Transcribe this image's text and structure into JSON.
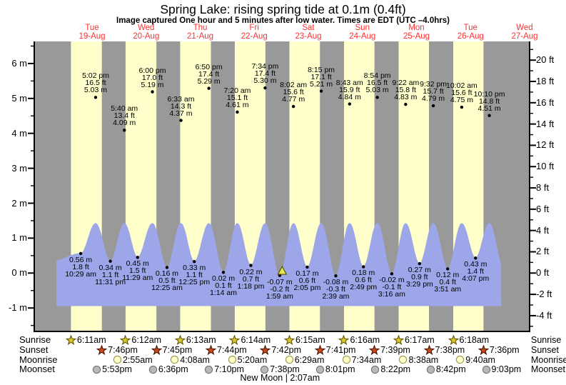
{
  "title": "Spring Lake: rising  spring tide at 0.1m (0.4ft)",
  "subtitle": "Image captured One hour and 5 minutes after low water. Times are EDT (UTC –4.0hrs)",
  "days": [
    {
      "name": "Tue",
      "date": "19-Aug"
    },
    {
      "name": "Wed",
      "date": "20-Aug"
    },
    {
      "name": "Thu",
      "date": "21-Aug"
    },
    {
      "name": "Fri",
      "date": "22-Aug"
    },
    {
      "name": "Sat",
      "date": "23-Aug"
    },
    {
      "name": "Sun",
      "date": "24-Aug"
    },
    {
      "name": "Mon",
      "date": "25-Aug"
    },
    {
      "name": "Tue",
      "date": "26-Aug"
    },
    {
      "name": "Wed",
      "date": "27-Aug"
    }
  ],
  "axis": {
    "left_ticks": [
      {
        "label": "6 m",
        "m": 6
      },
      {
        "label": "5 m",
        "m": 5
      },
      {
        "label": "4 m",
        "m": 4
      },
      {
        "label": "3 m",
        "m": 3
      },
      {
        "label": "2 m",
        "m": 2
      },
      {
        "label": "1 m",
        "m": 1
      },
      {
        "label": "0 m",
        "m": 0
      },
      {
        "label": "-1 m",
        "m": -1
      }
    ],
    "right_ticks": [
      {
        "label": "20 ft",
        "ft": 20
      },
      {
        "label": "18 ft",
        "ft": 18
      },
      {
        "label": "16 ft",
        "ft": 16
      },
      {
        "label": "14 ft",
        "ft": 14
      },
      {
        "label": "12 ft",
        "ft": 12
      },
      {
        "label": "10 ft",
        "ft": 10
      },
      {
        "label": "8 ft",
        "ft": 8
      },
      {
        "label": "6 ft",
        "ft": 6
      },
      {
        "label": "4 ft",
        "ft": 4
      },
      {
        "label": "2 ft",
        "ft": 2
      },
      {
        "label": "0 ft",
        "ft": 0
      },
      {
        "label": "-2 ft",
        "ft": -2
      },
      {
        "label": "-4 ft",
        "ft": -4
      }
    ]
  },
  "chart_data": {
    "type": "area",
    "description": "Semidiurnal tide curve, alternating day (yellow) / night (grey) bands",
    "y_axis_left": "meters",
    "y_axis_right": "feet",
    "high_tides": [
      {
        "day": 0,
        "time": "5:02 pm",
        "ft": "16.5 ft",
        "m": "5.03 m"
      },
      {
        "day": 1,
        "time": "5:40 am",
        "ft": "13.4 ft",
        "m": "4.09 m"
      },
      {
        "day": 1,
        "time": "6:00 pm",
        "ft": "17.0 ft",
        "m": "5.19 m"
      },
      {
        "day": 2,
        "time": "6:33 am",
        "ft": "14.3 ft",
        "m": "4.37 m"
      },
      {
        "day": 2,
        "time": "6:50 pm",
        "ft": "17.4 ft",
        "m": "5.29 m"
      },
      {
        "day": 3,
        "time": "7:20 am",
        "ft": "15.1 ft",
        "m": "4.61 m"
      },
      {
        "day": 3,
        "time": "7:34 pm",
        "ft": "17.4 ft",
        "m": "5.30 m"
      },
      {
        "day": 4,
        "time": "8:02 am",
        "ft": "15.6 ft",
        "m": "4.77 m"
      },
      {
        "day": 4,
        "time": "8:15 pm",
        "ft": "17.1 ft",
        "m": "5.21 m"
      },
      {
        "day": 5,
        "time": "8:43 am",
        "ft": "15.9 ft",
        "m": "4.84 m"
      },
      {
        "day": 5,
        "time": "8:54 pm",
        "ft": "16.5 ft",
        "m": "5.03 m"
      },
      {
        "day": 6,
        "time": "9:22 am",
        "ft": "15.8 ft",
        "m": "4.83 m"
      },
      {
        "day": 6,
        "time": "9:32 pm",
        "ft": "15.7 ft",
        "m": "4.79 m"
      },
      {
        "day": 7,
        "time": "10:02 am",
        "ft": "15.6 ft",
        "m": "4.75 m"
      },
      {
        "day": 7,
        "time": "10:10 pm",
        "ft": "14.8 ft",
        "m": "4.51 m"
      }
    ],
    "low_tides": [
      {
        "day": 0,
        "time": "10:29 am",
        "ft": "1.8 ft",
        "m": "0.56 m"
      },
      {
        "day": 0,
        "time": "11:31 pm",
        "ft": "1.1 ft",
        "m": "0.34 m"
      },
      {
        "day": 1,
        "time": "11:29 am",
        "ft": "1.5 ft",
        "m": "0.45 m"
      },
      {
        "day": 2,
        "time": "12:25 am",
        "ft": "0.5 ft",
        "m": "0.16 m"
      },
      {
        "day": 2,
        "time": "12:25 pm",
        "ft": "1.1 ft",
        "m": "0.33 m"
      },
      {
        "day": 3,
        "time": "1:14 am",
        "ft": "0.1 ft",
        "m": "0.02 m"
      },
      {
        "day": 3,
        "time": "1:18 pm",
        "ft": "0.7 ft",
        "m": "0.22 m"
      },
      {
        "day": 4,
        "time": "1:59 am",
        "ft": "-0.2 ft",
        "m": "-0.07 m"
      },
      {
        "day": 4,
        "time": "2:05 pm",
        "ft": "0.6 ft",
        "m": "0.17 m"
      },
      {
        "day": 5,
        "time": "2:39 am",
        "ft": "-0.3 ft",
        "m": "-0.08 m"
      },
      {
        "day": 5,
        "time": "2:49 pm",
        "ft": "0.6 ft",
        "m": "0.18 m"
      },
      {
        "day": 6,
        "time": "3:16 am",
        "ft": "-0.1 ft",
        "m": "-0.02 m"
      },
      {
        "day": 6,
        "time": "3:29 pm",
        "ft": "0.9 ft",
        "m": "0.27 m"
      },
      {
        "day": 7,
        "time": "3:51 am",
        "ft": "0.4 ft",
        "m": "0.12 m"
      },
      {
        "day": 7,
        "time": "4:07 pm",
        "ft": "1.4 ft",
        "m": "0.43 m"
      }
    ],
    "current_marker": {
      "day": 4,
      "hour": 3.07
    }
  },
  "sun_moon": {
    "row_labels": [
      "Sunrise",
      "Sunset",
      "Moonrise",
      "Moonset"
    ],
    "sunrise": [
      {
        "day": 0,
        "time": "6:11am"
      },
      {
        "day": 1,
        "time": "6:12am"
      },
      {
        "day": 2,
        "time": "6:13am"
      },
      {
        "day": 3,
        "time": "6:14am"
      },
      {
        "day": 4,
        "time": "6:15am"
      },
      {
        "day": 5,
        "time": "6:16am"
      },
      {
        "day": 6,
        "time": "6:17am"
      },
      {
        "day": 7,
        "time": "6:18am"
      }
    ],
    "sunset": [
      {
        "day": 0,
        "time": "7:46pm"
      },
      {
        "day": 1,
        "time": "7:45pm"
      },
      {
        "day": 2,
        "time": "7:44pm"
      },
      {
        "day": 3,
        "time": "7:42pm"
      },
      {
        "day": 4,
        "time": "7:41pm"
      },
      {
        "day": 5,
        "time": "7:39pm"
      },
      {
        "day": 6,
        "time": "7:38pm"
      },
      {
        "day": 7,
        "time": "7:36pm"
      }
    ],
    "moonrise": [
      {
        "day": 1,
        "time": "2:55am"
      },
      {
        "day": 2,
        "time": "4:08am"
      },
      {
        "day": 3,
        "time": "5:20am"
      },
      {
        "day": 4,
        "time": "6:29am"
      },
      {
        "day": 5,
        "time": "7:34am"
      },
      {
        "day": 6,
        "time": "8:38am"
      },
      {
        "day": 7,
        "time": "9:40am"
      }
    ],
    "moonset": [
      {
        "day": 0,
        "time": "5:53pm"
      },
      {
        "day": 1,
        "time": "6:36pm"
      },
      {
        "day": 2,
        "time": "7:10pm"
      },
      {
        "day": 3,
        "time": "7:38pm"
      },
      {
        "day": 4,
        "time": "8:01pm"
      },
      {
        "day": 5,
        "time": "8:22pm"
      },
      {
        "day": 6,
        "time": "8:42pm"
      },
      {
        "day": 7,
        "time": "9:03pm"
      }
    ],
    "new_moon": "New Moon | 2:07am"
  },
  "colors": {
    "day_band": "#ffffcc",
    "night_band": "#999999",
    "water": "#9ca6e9",
    "day_label": "#ff3030",
    "sunrise_star": "#d9cb30",
    "sunrise_star_stroke": "#6b5600",
    "sunset_star": "#cc4a1a",
    "sunset_star_stroke": "#4d1500",
    "moonrise_fill": "#ffffcc",
    "moonrise_stroke": "#99994d",
    "moonset_fill": "#b9b9b9",
    "moonset_stroke": "#737373",
    "marker_fill": "#e8e455",
    "marker_stroke": "#555500"
  }
}
